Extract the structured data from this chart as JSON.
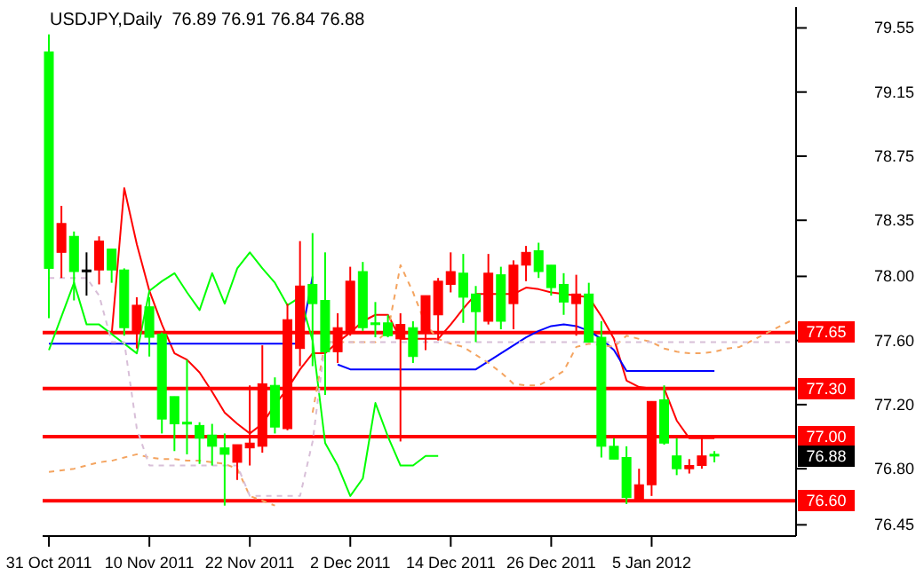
{
  "chart_data": {
    "type": "candlestick",
    "title": "USDJPY,Daily  76.89 76.91 76.84 76.88",
    "categories": [
      "31 Oct 2011",
      null,
      null,
      null,
      null,
      null,
      null,
      null,
      "10 Nov 2011",
      null,
      null,
      null,
      null,
      null,
      null,
      null,
      "22 Nov 2011",
      null,
      null,
      null,
      null,
      null,
      null,
      null,
      "2 Dec 2011",
      null,
      null,
      null,
      null,
      null,
      null,
      null,
      "14 Dec 2011",
      null,
      null,
      null,
      null,
      null,
      null,
      null,
      "26 Dec 2011",
      null,
      null,
      null,
      null,
      null,
      null,
      null,
      "5 Jan 2012",
      null,
      null,
      null,
      null,
      null,
      null,
      null,
      null,
      null,
      null,
      null
    ],
    "ohlc": [
      [
        78.05,
        79.51,
        77.74,
        79.4
      ],
      [
        78.33,
        78.44,
        77.99,
        78.15
      ],
      [
        78.03,
        78.28,
        77.85,
        78.25
      ],
      [
        78.04,
        78.15,
        77.88,
        78.04
      ],
      [
        78.22,
        78.25,
        77.95,
        78.04
      ],
      [
        78.04,
        78.17,
        77.96,
        78.17
      ],
      [
        77.68,
        78.05,
        77.63,
        78.04
      ],
      [
        77.82,
        77.87,
        77.55,
        77.66
      ],
      [
        77.62,
        77.87,
        77.5,
        77.81
      ],
      [
        77.11,
        77.65,
        77.02,
        77.64
      ],
      [
        77.08,
        77.25,
        76.91,
        77.25
      ],
      [
        77.08,
        77.48,
        76.89,
        77.09
      ],
      [
        76.99,
        77.09,
        76.83,
        77.07
      ],
      [
        76.94,
        77.08,
        76.82,
        77.01
      ],
      [
        76.89,
        77.02,
        76.57,
        76.93
      ],
      [
        76.95,
        76.95,
        76.73,
        76.84
      ],
      [
        76.96,
        77.32,
        76.82,
        76.93
      ],
      [
        77.33,
        77.57,
        76.9,
        76.94
      ],
      [
        77.06,
        77.37,
        77.02,
        77.32
      ],
      [
        77.73,
        77.83,
        77.04,
        77.05
      ],
      [
        77.94,
        78.22,
        77.44,
        77.55
      ],
      [
        77.83,
        78.27,
        77.44,
        77.95
      ],
      [
        77.53,
        78.15,
        77.26,
        77.85
      ],
      [
        77.68,
        77.77,
        77.46,
        77.53
      ],
      [
        77.97,
        78.06,
        77.63,
        77.66
      ],
      [
        77.68,
        78.09,
        77.66,
        78.03
      ],
      [
        77.7,
        77.84,
        77.62,
        77.71
      ],
      [
        77.63,
        77.76,
        77.62,
        77.71
      ],
      [
        77.7,
        77.77,
        76.97,
        77.61
      ],
      [
        77.5,
        77.72,
        77.46,
        77.68
      ],
      [
        77.88,
        77.88,
        77.54,
        77.65
      ],
      [
        77.97,
        77.99,
        77.6,
        77.76
      ],
      [
        78.03,
        78.15,
        77.9,
        77.95
      ],
      [
        77.87,
        78.14,
        77.71,
        78.02
      ],
      [
        77.78,
        77.94,
        77.59,
        77.89
      ],
      [
        78.02,
        78.14,
        77.7,
        77.72
      ],
      [
        77.72,
        78.06,
        77.67,
        78.01
      ],
      [
        78.07,
        78.1,
        77.67,
        77.83
      ],
      [
        78.15,
        78.19,
        77.97,
        78.07
      ],
      [
        78.03,
        78.21,
        77.99,
        78.16
      ],
      [
        77.93,
        78.07,
        77.88,
        78.07
      ],
      [
        77.84,
        78.02,
        77.76,
        77.95
      ],
      [
        77.89,
        78.01,
        77.63,
        77.83
      ],
      [
        77.59,
        77.96,
        77.59,
        77.89
      ],
      [
        76.94,
        77.72,
        76.87,
        77.62
      ],
      [
        76.86,
        76.99,
        76.86,
        76.94
      ],
      [
        76.62,
        76.94,
        76.58,
        76.87
      ],
      [
        76.7,
        76.8,
        76.6,
        76.6
      ],
      [
        77.22,
        77.22,
        76.63,
        76.7
      ],
      [
        76.96,
        77.32,
        76.95,
        77.23
      ],
      [
        76.8,
        76.99,
        76.76,
        76.88
      ],
      [
        76.82,
        76.86,
        76.77,
        76.8
      ],
      [
        76.88,
        77.0,
        76.8,
        76.82
      ],
      [
        76.89,
        76.91,
        76.84,
        76.88
      ],
      null,
      null,
      null,
      null,
      null,
      null
    ],
    "colors": [
      "#00ff00",
      "#ff0000",
      "#00ff00",
      "#000000",
      "#ff0000",
      "#00ff00",
      "#00ff00",
      "#ff0000",
      "#00ff00",
      "#00ff00",
      "#00ff00",
      "#00ff00",
      "#00ff00",
      "#00ff00",
      "#00ff00",
      "#ff0000",
      "#ff0000",
      "#ff0000",
      "#00ff00",
      "#ff0000",
      "#ff0000",
      "#00ff00",
      "#00ff00",
      "#ff0000",
      "#ff0000",
      "#00ff00",
      "#00ff00",
      "#00ff00",
      "#ff0000",
      "#00ff00",
      "#ff0000",
      "#ff0000",
      "#ff0000",
      "#00ff00",
      "#00ff00",
      "#ff0000",
      "#00ff00",
      "#ff0000",
      "#ff0000",
      "#00ff00",
      "#00ff00",
      "#00ff00",
      "#ff0000",
      "#00ff00",
      "#00ff00",
      "#00ff00",
      "#00ff00",
      "#ff0000",
      "#ff0000",
      "#00ff00",
      "#00ff00",
      "#ff0000",
      "#ff0000",
      "#00ff00",
      null,
      null,
      null,
      null,
      null,
      null
    ],
    "series": [
      {
        "type": "line",
        "color": "#ff0000",
        "values": [
          null,
          null,
          null,
          null,
          null,
          77.64,
          78.55,
          78.2,
          77.91,
          77.7,
          77.52,
          77.48,
          77.4,
          77.28,
          77.15,
          77.08,
          77.02,
          77.08,
          77.2,
          77.3,
          77.42,
          77.52,
          77.52,
          77.59,
          77.65,
          77.72,
          77.76,
          77.76,
          77.61,
          77.61,
          77.61,
          77.61,
          77.7,
          77.8,
          77.89,
          77.89,
          77.89,
          77.89,
          77.93,
          77.92,
          77.9,
          77.89,
          77.88,
          77.87,
          77.75,
          77.61,
          77.35,
          77.31,
          77.3,
          77.3,
          77.1,
          76.99,
          76.99,
          76.99,
          null,
          null,
          null,
          null,
          null,
          null
        ]
      },
      {
        "type": "line",
        "color": "#0000ff",
        "values": [
          77.58,
          77.58,
          77.58,
          77.58,
          77.58,
          77.58,
          77.58,
          77.58,
          77.58,
          77.58,
          77.58,
          77.58,
          77.58,
          77.58,
          77.58,
          77.58,
          77.58,
          77.58,
          77.58,
          77.58,
          77.58,
          78.0,
          null,
          77.45,
          77.42,
          77.42,
          77.42,
          77.42,
          77.42,
          77.42,
          77.42,
          77.42,
          77.42,
          77.42,
          77.42,
          77.47,
          77.52,
          77.57,
          77.62,
          77.66,
          77.69,
          77.7,
          77.69,
          77.66,
          77.61,
          77.54,
          77.41,
          77.41,
          77.41,
          77.41,
          77.41,
          77.41,
          77.41,
          77.41,
          null,
          null,
          null,
          null,
          null,
          null
        ]
      },
      {
        "type": "line",
        "color": "#00ff00",
        "values": [
          77.54,
          77.75,
          77.96,
          77.7,
          77.7,
          77.64,
          77.58,
          77.52,
          77.91,
          77.97,
          78.02,
          77.9,
          77.79,
          78.02,
          77.83,
          78.05,
          78.15,
          78.05,
          77.96,
          77.82,
          77.87,
          77.6,
          76.96,
          76.82,
          76.63,
          76.74,
          77.21,
          77.0,
          76.82,
          76.82,
          76.88,
          76.88,
          null,
          null,
          null,
          null,
          null,
          null,
          null,
          null,
          null,
          null,
          null,
          null,
          null,
          null,
          null,
          null,
          null,
          null,
          null,
          null,
          null,
          null,
          null,
          null,
          null,
          null,
          null,
          null
        ]
      },
      {
        "type": "line",
        "color": "#f4a460",
        "line_style": "dashed",
        "values": [
          76.78,
          76.79,
          76.8,
          76.82,
          76.84,
          76.85,
          76.87,
          76.89,
          76.87,
          76.86,
          76.86,
          76.85,
          76.85,
          76.84,
          76.83,
          76.8,
          76.63,
          76.6,
          76.57,
          null,
          null,
          77.15,
          77.59,
          77.59,
          77.59,
          77.59,
          77.59,
          77.66,
          78.07,
          77.9,
          77.7,
          77.61,
          77.58,
          77.56,
          77.51,
          77.46,
          77.4,
          77.33,
          77.32,
          77.32,
          77.36,
          77.41,
          77.56,
          77.58,
          77.57,
          77.56,
          77.63,
          77.61,
          77.59,
          77.55,
          77.53,
          77.52,
          77.52,
          77.53,
          77.55,
          77.56,
          77.6,
          77.64,
          77.68,
          77.72
        ]
      },
      {
        "type": "line",
        "color": "#d8bfd8",
        "line_style": "dashed",
        "values": [
          77.99,
          77.99,
          77.99,
          77.99,
          77.88,
          77.59,
          77.59,
          77.05,
          76.82,
          76.82,
          76.82,
          76.82,
          76.82,
          76.82,
          76.82,
          76.82,
          76.63,
          76.63,
          76.63,
          76.63,
          76.63,
          76.97,
          77.59,
          77.59,
          77.59,
          77.59,
          77.59,
          77.59,
          77.59,
          77.59,
          77.59,
          77.59,
          77.59,
          77.59,
          77.59,
          77.59,
          77.59,
          77.59,
          77.59,
          77.59,
          77.59,
          77.59,
          77.59,
          77.59,
          77.59,
          77.59,
          77.59,
          77.59,
          77.59,
          77.59,
          77.59,
          77.59,
          77.59,
          77.59,
          77.59,
          77.59,
          77.59,
          77.59,
          77.59,
          77.59
        ]
      }
    ],
    "ylim": [
      76.38,
      79.68
    ],
    "yticks": [
      79.55,
      79.15,
      78.75,
      78.35,
      {
        "value": 78,
        "label": "78.00"
      },
      {
        "value": 77.6,
        "label": "77.60"
      },
      {
        "value": 77.2,
        "label": "77.20"
      },
      {
        "value": 76.8,
        "label": "76.80"
      },
      76.45
    ],
    "ref_lines": [
      {
        "axis": "y",
        "value": 77.65,
        "label": "77.65",
        "color": "#ff0000"
      },
      {
        "axis": "y",
        "value": 77.3,
        "label": "77.30",
        "color": "#ff0000"
      },
      {
        "axis": "y",
        "value": 77.0,
        "label": "77.00",
        "color": "#ff0000"
      },
      {
        "axis": "y",
        "value": 76.6,
        "label": "76.60",
        "color": "#ff0000"
      }
    ],
    "annotations": [
      "76.88"
    ]
  }
}
